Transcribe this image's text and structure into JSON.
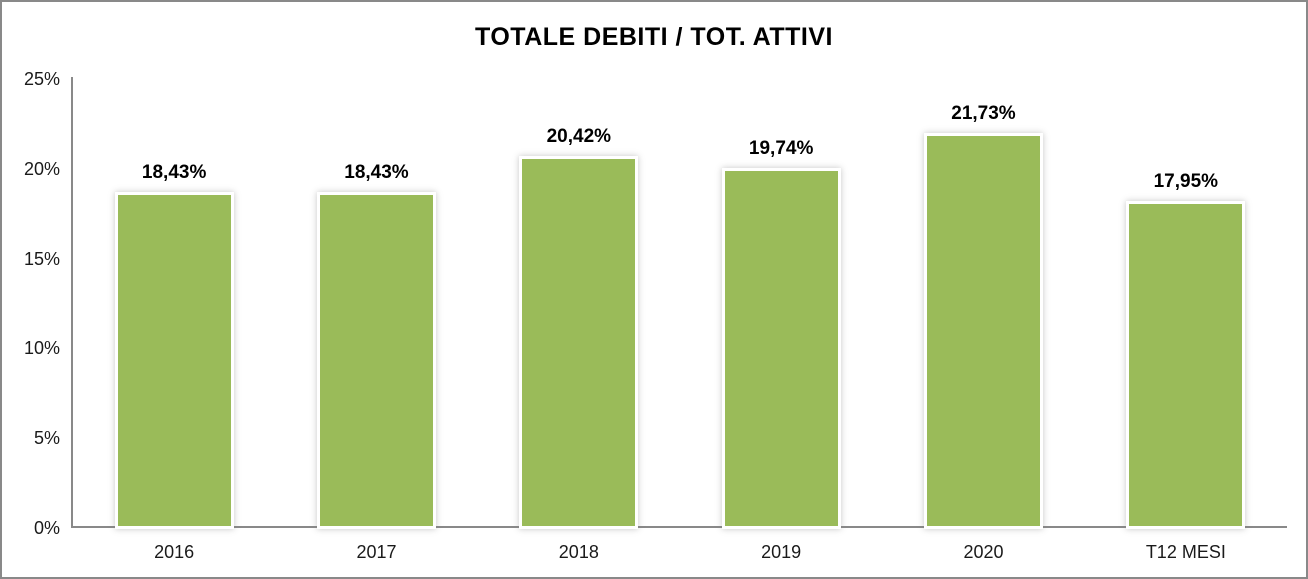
{
  "window": {
    "background_color": "#FFFFFF",
    "border_color": "#898989"
  },
  "chart_data": {
    "type": "bar",
    "title": "TOTALE DEBITI / TOT. ATTIVI",
    "categories": [
      "2016",
      "2017",
      "2018",
      "2019",
      "2020",
      "T12 MESI"
    ],
    "values": [
      18.43,
      18.43,
      20.42,
      19.74,
      21.73,
      17.95
    ],
    "value_labels": [
      "18,43%",
      "18,43%",
      "20,42%",
      "19,74%",
      "21,73%",
      "17,95%"
    ],
    "xlabel": "",
    "ylabel": "",
    "ylim": [
      0,
      25
    ],
    "y_ticks": [
      0,
      5,
      10,
      15,
      20,
      25
    ],
    "y_tick_labels": [
      "0%",
      "5%",
      "10%",
      "15%",
      "20%",
      "25%"
    ],
    "grid": "off",
    "legend": "none",
    "bar_color": "#9ABB59",
    "axis_color": "#898989",
    "text_color": "#000000"
  }
}
